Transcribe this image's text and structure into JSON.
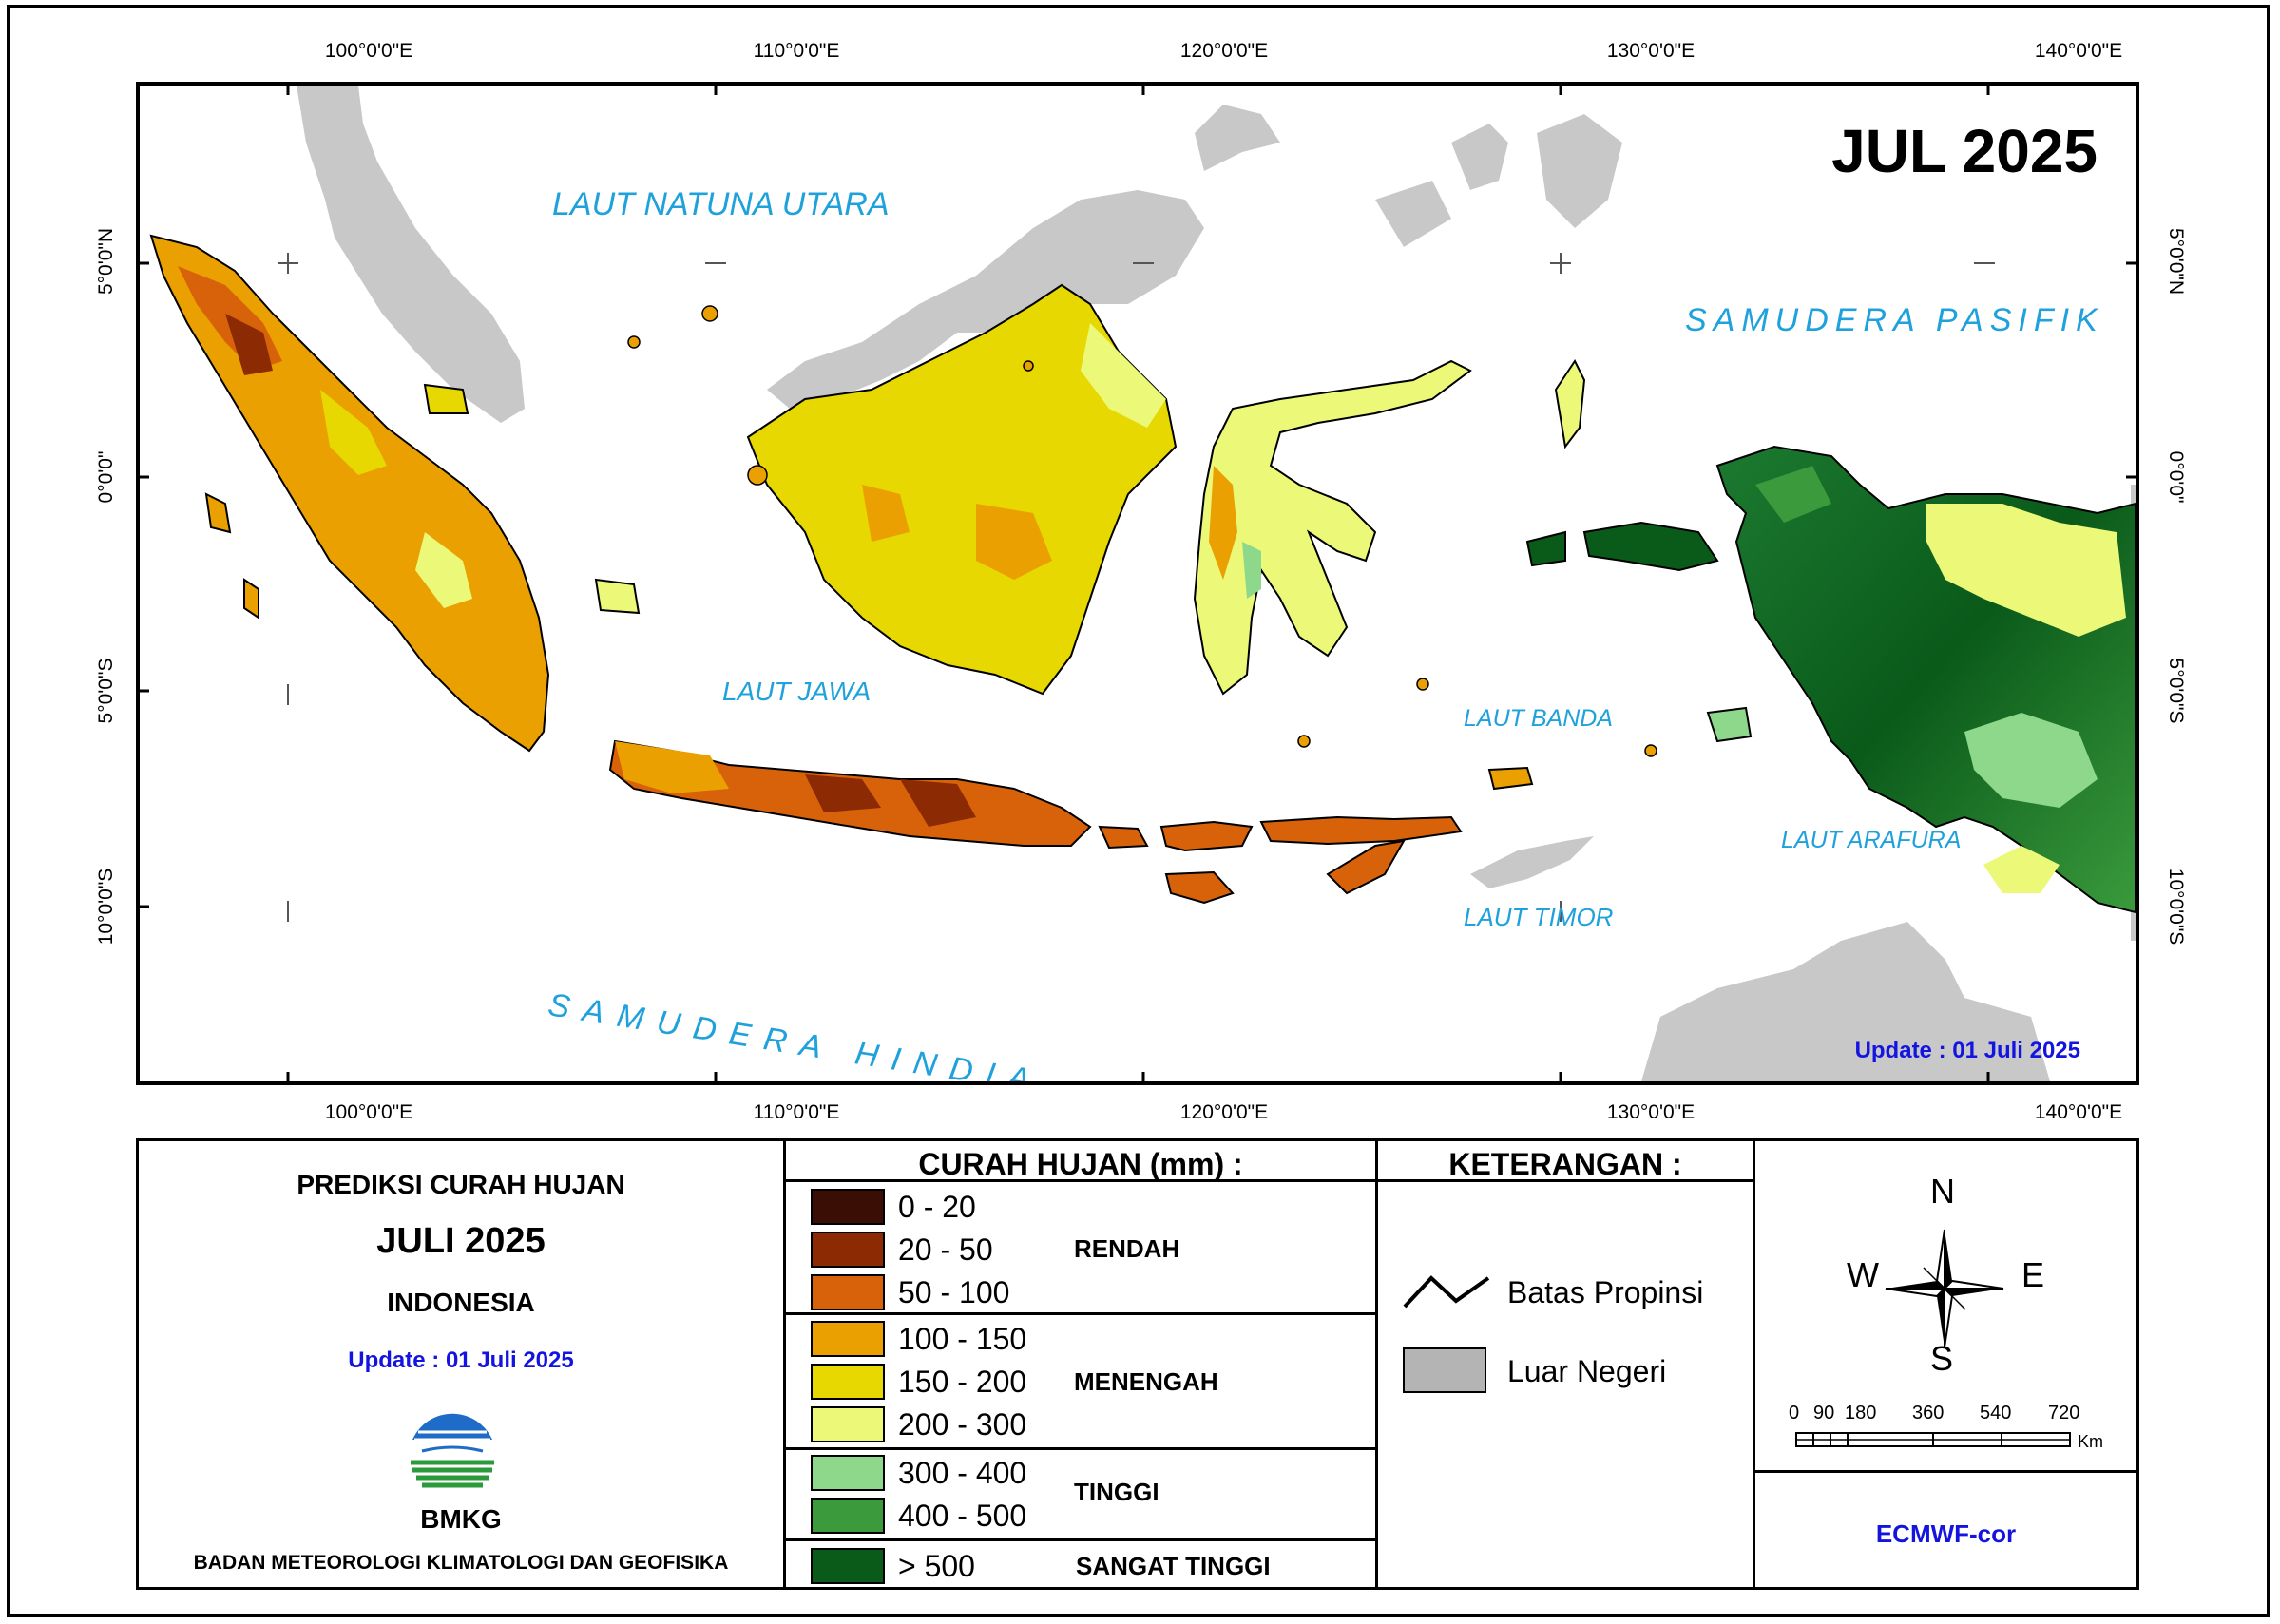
{
  "map": {
    "title": "JUL 2025",
    "update_text": "Update : 01 Juli  2025",
    "lon_labels": [
      "100°0'0\"E",
      "110°0'0\"E",
      "120°0'0\"E",
      "130°0'0\"E",
      "140°0'0\"E"
    ],
    "lat_labels": [
      "5°0'0\"N",
      "0°0'0\"",
      "5°0'0\"S",
      "10°0'0\"S"
    ],
    "sea_labels": {
      "natuna": "LAUT NATUNA UTARA",
      "pasifik": "SAMUDERA PASIFIK",
      "jawa": "LAUT JAWA",
      "banda": "LAUT BANDA",
      "arafura": "LAUT ARAFURA",
      "timor": "LAUT TIMOR",
      "hindia": "SAMUDERA HINDIA"
    },
    "colors": {
      "foreign_land": "#c8c8c8",
      "sea_text": "#1fa1dc"
    }
  },
  "info_panel": {
    "title": "PREDIKSI CURAH HUJAN",
    "period": "JULI 2025",
    "region": "INDONESIA",
    "update": "Update : 01 Juli  2025",
    "logo_text": "BMKG",
    "agency": "BADAN METEOROLOGI KLIMATOLOGI DAN GEOFISIKA"
  },
  "legend": {
    "header": "CURAH HUJAN (mm) :",
    "classes": [
      {
        "range": "0 - 20",
        "color": "#3a0d05"
      },
      {
        "range": "20 - 50",
        "color": "#8c2a04"
      },
      {
        "range": "50 - 100",
        "color": "#d7620a"
      },
      {
        "range": "100 - 150",
        "color": "#eaa000"
      },
      {
        "range": "150 - 200",
        "color": "#e6d800"
      },
      {
        "range": "200 - 300",
        "color": "#ecf878"
      },
      {
        "range": "300 - 400",
        "color": "#8ed88c"
      },
      {
        "range": "400 - 500",
        "color": "#3a9a3c"
      },
      {
        "range": "> 500",
        "color": "#0a5a1a"
      }
    ],
    "groups": [
      "RENDAH",
      "MENENGAH",
      "TINGGI",
      "SANGAT TINGGI"
    ]
  },
  "keterangan": {
    "header": "KETERANGAN :",
    "items": [
      "Batas Propinsi",
      "Luar Negeri"
    ]
  },
  "compass": {
    "n": "N",
    "s": "S",
    "e": "E",
    "w": "W"
  },
  "scale": {
    "ticks": [
      "0",
      "90",
      "180",
      "360",
      "540",
      "720"
    ],
    "unit": "Km"
  },
  "model": "ECMWF-cor"
}
